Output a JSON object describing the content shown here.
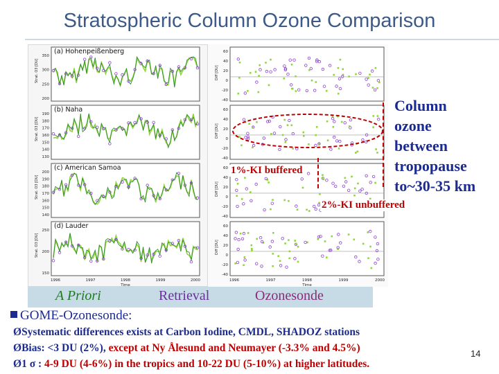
{
  "slide": {
    "title": "Stratospheric Column Ozone Comparison",
    "page_number": "14"
  },
  "panels": [
    {
      "label": "(a) Hohenpeißenberg",
      "ylabel": "Strat. O3 [DU]",
      "yticks": [
        "350",
        "300",
        "250",
        "200"
      ],
      "dticks": [
        "60",
        "40",
        "20",
        "0",
        "-20",
        "-40"
      ]
    },
    {
      "label": "(b) Naha",
      "ylabel": "Strat. O3 [DU]",
      "yticks": [
        "190",
        "180",
        "170",
        "160",
        "150",
        "140",
        "130"
      ],
      "dticks": [
        "60",
        "40",
        "20",
        "0",
        "-20",
        "-40"
      ]
    },
    {
      "label": "(c) American Samoa",
      "ylabel": "Strat. O3 [DU]",
      "yticks": [
        "200",
        "190",
        "180",
        "170",
        "160",
        "150",
        "140"
      ],
      "dticks": [
        "60",
        "40",
        "20",
        "0",
        "-20",
        "-40"
      ]
    },
    {
      "label": "(d) Lauder",
      "ylabel": "Strat. O3 [DU]",
      "yticks": [
        "250",
        "200",
        "150"
      ],
      "dticks": [
        "60",
        "40",
        "20",
        "0",
        "-20",
        "-40"
      ]
    }
  ],
  "axes": {
    "left_xticks": [
      "1996",
      "1997",
      "1998",
      "1999",
      "2000"
    ],
    "right_xticks": [
      "1996",
      "1997",
      "1998",
      "1999",
      "2000"
    ],
    "left_xlabel": "Time",
    "right_xlabel": "Time",
    "left_ylabel": "Strat. O3 [DU]",
    "right_ylabel": "Diff [DU]"
  },
  "legend": {
    "a_priori": "A Priori",
    "retrieval": "Retrieval",
    "ozonesonde": "Ozonesonde"
  },
  "annotations": {
    "callout": [
      "Column",
      "ozone",
      "between",
      "tropopause",
      "to~30-35 km"
    ],
    "buffered": "1%-KI buffered",
    "unbuffered": "2%-KI unbuffered"
  },
  "body": {
    "heading": "GOME-Ozonesonde:",
    "bullets": [
      {
        "prefix": "Ø",
        "segments": [
          {
            "t": "Systematic differences exists at Carbon Iodine, CMDL, SHADOZ stations",
            "red": false
          }
        ]
      },
      {
        "prefix": "Ø",
        "segments": [
          {
            "t": "Bias: <3 DU (2%), ",
            "red": false
          },
          {
            "t": "except at Ny Ålesund and Neumayer (-3.3% and 4.5%)",
            "red": true
          }
        ]
      },
      {
        "prefix": "Ø",
        "segments": [
          {
            "t": "1 σ : ",
            "red": false
          },
          {
            "t": "4-9 DU (4-6%) in the tropics and 10-22 DU (5-10%) at higher latitudes.",
            "red": true
          }
        ]
      }
    ]
  },
  "colors": {
    "title": "#3c5a88",
    "apriori": "#8fd63a",
    "retrieval": "#2e8b2e",
    "ozonesonde": "#8a3fd0",
    "highlight": "#c00000",
    "text": "#1b2b8f",
    "legend_bg": "#c6dbe6"
  }
}
